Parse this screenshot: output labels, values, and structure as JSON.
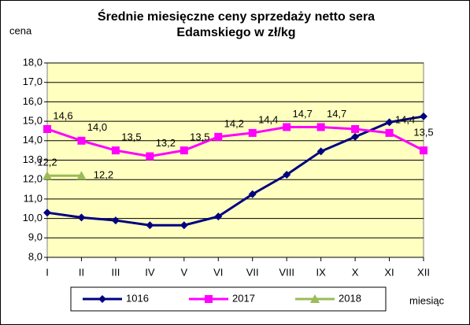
{
  "chart_data": {
    "type": "line",
    "title": [
      "Średnie miesięczne ceny sprzedaży netto sera",
      "Edamskiego w zł/kg"
    ],
    "y_label": "cena",
    "x_label": "miesiąc",
    "categories": [
      "I",
      "II",
      "III",
      "IV",
      "V",
      "VI",
      "VII",
      "VIII",
      "IX",
      "X",
      "XI",
      "XII"
    ],
    "series": [
      {
        "name": "1016",
        "color": "#000080",
        "marker": "diamond",
        "values": [
          10.3,
          10.05,
          9.9,
          9.65,
          9.65,
          10.1,
          11.25,
          12.25,
          13.45,
          14.2,
          14.95,
          15.25
        ]
      },
      {
        "name": "2017",
        "color": "#ff00ff",
        "marker": "square",
        "values": [
          14.6,
          14.0,
          13.5,
          13.2,
          13.5,
          14.2,
          14.4,
          14.7,
          14.7,
          14.6,
          14.4,
          13.5
        ],
        "value_labels": [
          "14,6",
          "14,0",
          "13,5",
          "13,2",
          "13,5",
          "14,2",
          "14,4",
          "14,7",
          "14,7",
          null,
          "14,4",
          "13,5"
        ]
      },
      {
        "name": "2018",
        "color": "#9bbb59",
        "marker": "triangle",
        "values": [
          12.2,
          12.2,
          null,
          null,
          null,
          null,
          null,
          null,
          null,
          null,
          null,
          null
        ],
        "value_labels": [
          "12,2",
          "12,2",
          null,
          null,
          null,
          null,
          null,
          null,
          null,
          null,
          null,
          null
        ]
      }
    ],
    "ylim": [
      8,
      18
    ],
    "yticks": [
      {
        "value": 8,
        "label": "8,0"
      },
      {
        "value": 9,
        "label": "9,0"
      },
      {
        "value": 10,
        "label": "10,0"
      },
      {
        "value": 11,
        "label": "11,0"
      },
      {
        "value": 12,
        "label": "12,0"
      },
      {
        "value": 13,
        "label": "13,0"
      },
      {
        "value": 14,
        "label": "14,0"
      },
      {
        "value": 15,
        "label": "15,0"
      },
      {
        "value": 16,
        "label": "16,0"
      },
      {
        "value": 17,
        "label": "17,0"
      },
      {
        "value": 18,
        "label": "18,0"
      }
    ],
    "grid": true,
    "background": "#ffffc0",
    "legend": "bottom"
  }
}
